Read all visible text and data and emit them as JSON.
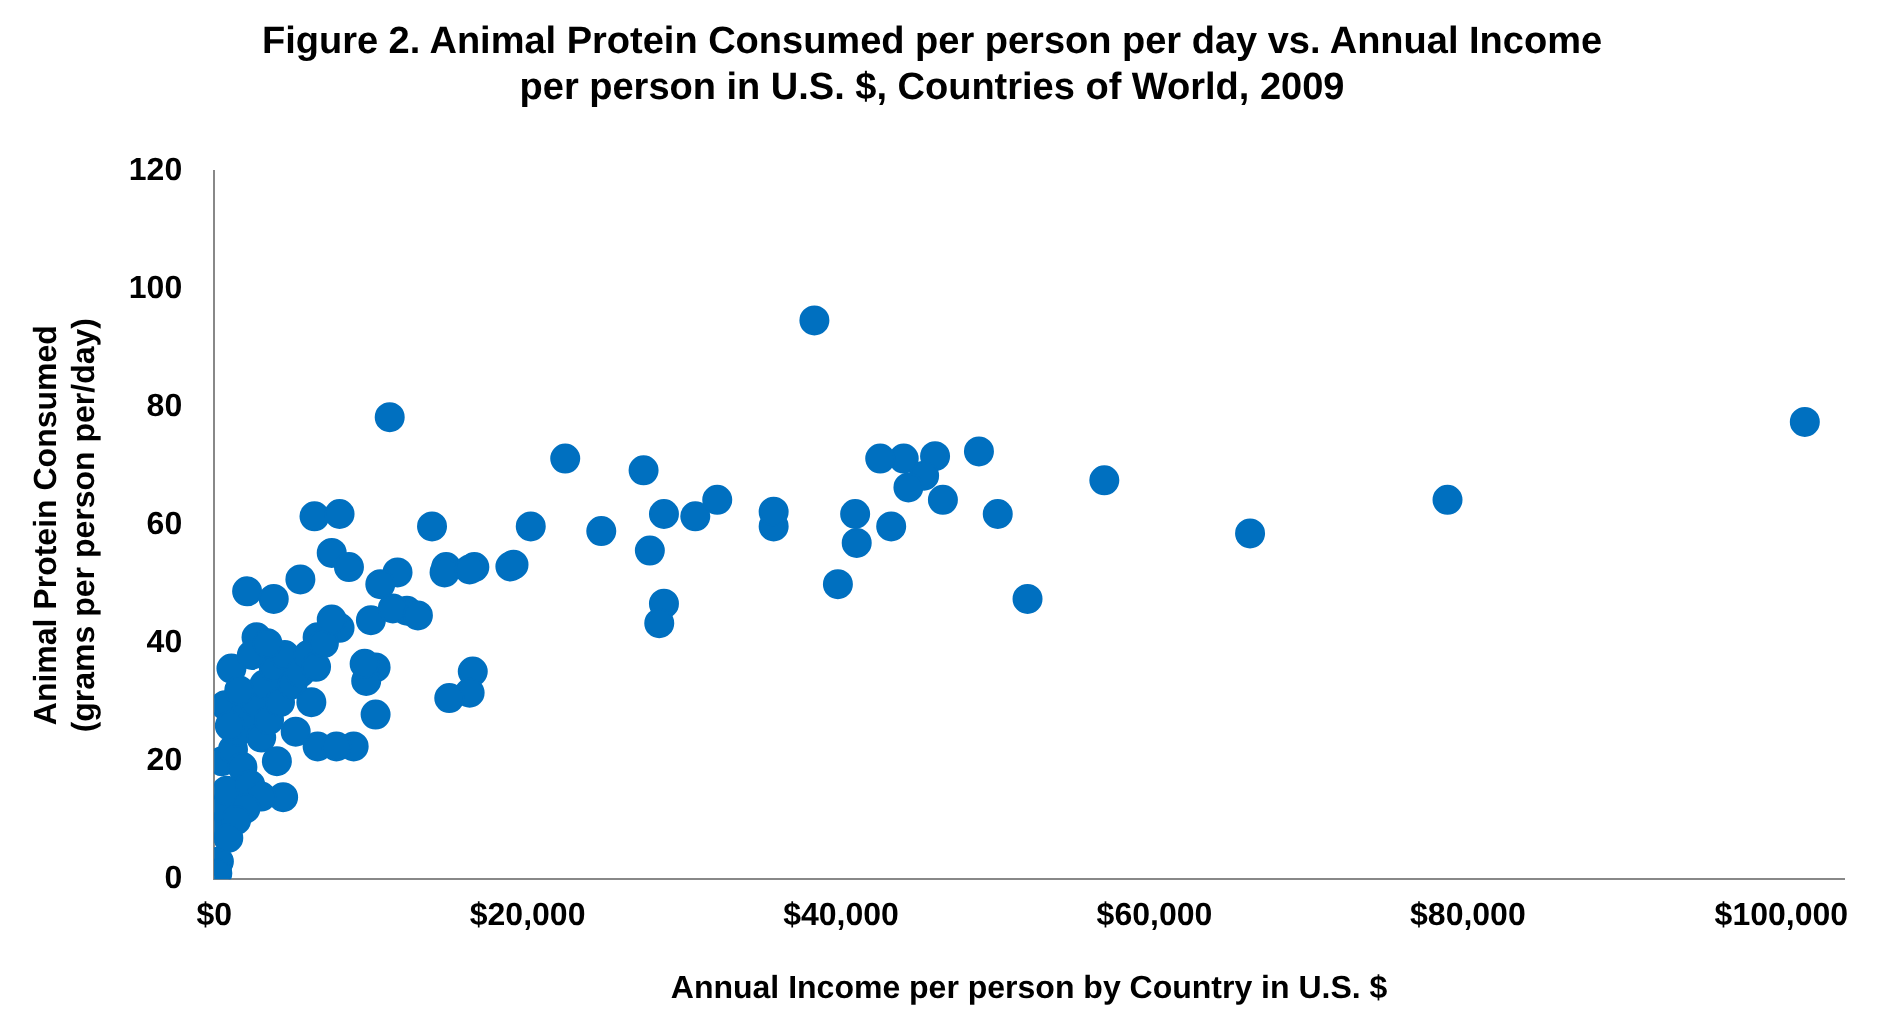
{
  "chart_data": {
    "type": "scatter",
    "title": "Figure 2. Animal Protein Consumed per person per day vs. Annual Income per person in U.S. $, Countries of World, 2009",
    "xlabel": "Annual Income per person by Country in U.S. $",
    "ylabel": "Animal Protein Consumed (grams per person per/day)",
    "marker": "circle",
    "grid": false,
    "legend": false,
    "xlim": [
      0,
      104000
    ],
    "xticks": [
      {
        "value": 0,
        "label": "$0"
      },
      {
        "value": 20000,
        "label": "$20,000"
      },
      {
        "value": 40000,
        "label": "$40,000"
      },
      {
        "value": 60000,
        "label": "$60,000"
      },
      {
        "value": 80000,
        "label": "$80,000"
      },
      {
        "value": 100000,
        "label": "$100,000"
      }
    ],
    "ylim": [
      0,
      120
    ],
    "yticks": [
      0,
      20,
      40,
      60,
      80,
      100,
      120
    ],
    "series": [
      {
        "color": "#0070c0",
        "x": [
          101500,
          78700,
          66100,
          56800,
          51900,
          50000,
          48800,
          46500,
          46000,
          45300,
          44300,
          44000,
          43200,
          42500,
          40900,
          41000,
          39800,
          38300,
          35700,
          35700,
          32100,
          30700,
          28700,
          28700,
          28400,
          27800,
          27400,
          24700,
          22400,
          20200,
          19100,
          16600,
          16500,
          16300,
          14800,
          15000,
          13900,
          11200,
          11700,
          12300,
          10600,
          10000,
          10300,
          9700,
          10300,
          6400,
          8000,
          14700,
          16300,
          18900,
          7500,
          8600,
          11400,
          13000,
          2100,
          3800,
          5500,
          2700,
          6600,
          8000,
          9600,
          8900,
          6600,
          7800,
          4400,
          1100,
          700,
          300,
          400,
          600,
          800,
          500,
          1200,
          1500,
          1800,
          2000,
          2300,
          2600,
          3000,
          3200,
          3500,
          3800,
          4200,
          4500,
          5000,
          5500,
          6000,
          6500,
          7000,
          7500,
          3000,
          2000,
          1400,
          900,
          4000,
          5200,
          6200,
          1600,
          2400,
          3400,
          1000,
          200
        ],
        "values": [
          77.5,
          64.3,
          58.6,
          67.6,
          47.5,
          61.9,
          72.5,
          64.3,
          71.7,
          68.4,
          66.4,
          71.3,
          59.8,
          71.3,
          61.9,
          57,
          50,
          94.7,
          59.8,
          62.3,
          64.3,
          61.5,
          61.9,
          46.7,
          43.4,
          55.7,
          69.3,
          59,
          71.3,
          59.8,
          53.3,
          52.9,
          35.2,
          31.6,
          52.9,
          30.7,
          59.8,
          78.3,
          52,
          45.5,
          50,
          43.9,
          35.9,
          33.6,
          27.9,
          61.5,
          61.9,
          52,
          52.5,
          53,
          55.3,
          52.9,
          45.9,
          44.7,
          48.8,
          47.5,
          50.8,
          41,
          41,
          42.6,
          36.5,
          22.5,
          22.5,
          22.5,
          13.9,
          35.7,
          29.5,
          3,
          9,
          12,
          15,
          20,
          22,
          25,
          19,
          28,
          16,
          30,
          24,
          33,
          27,
          36,
          30,
          38,
          33,
          35,
          38,
          36,
          40,
          44,
          14,
          12,
          10,
          7,
          20,
          25,
          30,
          32,
          38,
          40,
          26,
          1
        ]
      }
    ]
  }
}
